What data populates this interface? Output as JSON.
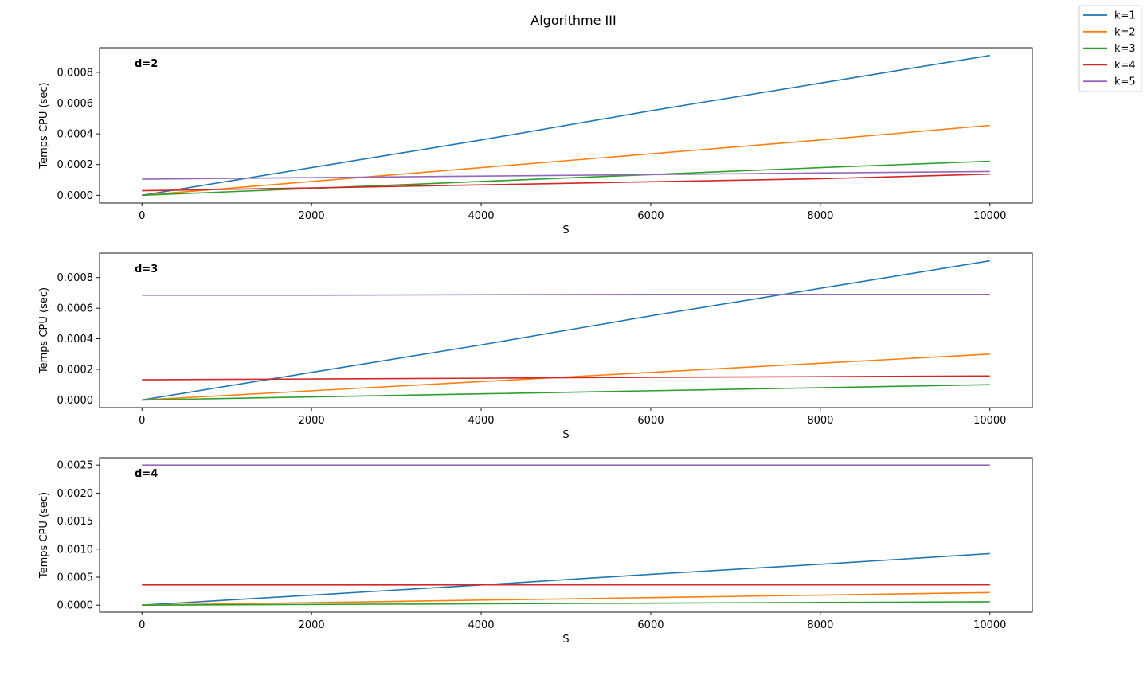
{
  "figure_title": "Algorithme III",
  "legend": {
    "placement": "top-right",
    "entries": [
      {
        "label": "k=1",
        "color": "#1f77b4"
      },
      {
        "label": "k=2",
        "color": "#ff7f0e"
      },
      {
        "label": "k=3",
        "color": "#2ca02c"
      },
      {
        "label": "k=4",
        "color": "#d62728"
      },
      {
        "label": "k=5",
        "color": "#9467bd"
      }
    ]
  },
  "chart_data": [
    {
      "type": "line",
      "panel_label": "d=2",
      "xlabel": "S",
      "ylabel": "Temps CPU (sec)",
      "xlim": [
        -500,
        10500
      ],
      "ylim": [
        -5e-05,
        0.00096
      ],
      "xticks": [
        0,
        2000,
        4000,
        6000,
        8000,
        10000
      ],
      "xtick_labels": [
        "0",
        "2000",
        "4000",
        "6000",
        "8000",
        "10000"
      ],
      "yticks": [
        0,
        0.0002,
        0.0004,
        0.0006,
        0.0008
      ],
      "ytick_labels": [
        "0.0000",
        "0.0002",
        "0.0004",
        "0.0006",
        "0.0008"
      ],
      "grid": false,
      "series": [
        {
          "name": "k=1",
          "x": [
            0,
            2000,
            4000,
            6000,
            8000,
            10000
          ],
          "y": [
            0.0,
            0.00018,
            0.00036,
            0.00055,
            0.00073,
            0.00091
          ]
        },
        {
          "name": "k=2",
          "x": [
            0,
            2000,
            4000,
            6000,
            8000,
            10000
          ],
          "y": [
            0.0,
            9e-05,
            0.00018,
            0.00027,
            0.00036,
            0.000455
          ]
        },
        {
          "name": "k=3",
          "x": [
            0,
            2000,
            4000,
            6000,
            8000,
            10000
          ],
          "y": [
            0.0,
            4.5e-05,
            9e-05,
            0.000135,
            0.00018,
            0.000222
          ]
        },
        {
          "name": "k=4",
          "x": [
            0,
            2000,
            4000,
            6000,
            8000,
            10000
          ],
          "y": [
            3e-05,
            4.8e-05,
            6.8e-05,
            8.8e-05,
            0.000108,
            0.000138
          ]
        },
        {
          "name": "k=5",
          "x": [
            0,
            2000,
            4000,
            6000,
            8000,
            10000
          ],
          "y": [
            0.000105,
            0.000115,
            0.000125,
            0.000135,
            0.000145,
            0.000155
          ]
        }
      ]
    },
    {
      "type": "line",
      "panel_label": "d=3",
      "xlabel": "S",
      "ylabel": "Temps CPU (sec)",
      "xlim": [
        -500,
        10500
      ],
      "ylim": [
        -5e-05,
        0.00096
      ],
      "xticks": [
        0,
        2000,
        4000,
        6000,
        8000,
        10000
      ],
      "xtick_labels": [
        "0",
        "2000",
        "4000",
        "6000",
        "8000",
        "10000"
      ],
      "yticks": [
        0,
        0.0002,
        0.0004,
        0.0006,
        0.0008
      ],
      "ytick_labels": [
        "0.0000",
        "0.0002",
        "0.0004",
        "0.0006",
        "0.0008"
      ],
      "grid": false,
      "series": [
        {
          "name": "k=1",
          "x": [
            0,
            2000,
            4000,
            6000,
            8000,
            10000
          ],
          "y": [
            0.0,
            0.00018,
            0.00036,
            0.00055,
            0.00073,
            0.00091
          ]
        },
        {
          "name": "k=2",
          "x": [
            0,
            2000,
            4000,
            6000,
            8000,
            10000
          ],
          "y": [
            0.0,
            6e-05,
            0.00012,
            0.00018,
            0.00024,
            0.0003
          ]
        },
        {
          "name": "k=3",
          "x": [
            0,
            2000,
            4000,
            6000,
            8000,
            10000
          ],
          "y": [
            0.0,
            2e-05,
            4e-05,
            6e-05,
            8e-05,
            0.0001
          ]
        },
        {
          "name": "k=4",
          "x": [
            0,
            2000,
            4000,
            6000,
            8000,
            10000
          ],
          "y": [
            0.000132,
            0.000137,
            0.000142,
            0.000148,
            0.000152,
            0.000157
          ]
        },
        {
          "name": "k=5",
          "x": [
            0,
            2000,
            4000,
            6000,
            8000,
            10000
          ],
          "y": [
            0.000685,
            0.000685,
            0.000688,
            0.00069,
            0.00069,
            0.00069
          ]
        }
      ]
    },
    {
      "type": "line",
      "panel_label": "d=4",
      "xlabel": "S",
      "ylabel": "Temps CPU (sec)",
      "xlim": [
        -500,
        10500
      ],
      "ylim": [
        -0.000125,
        0.00263
      ],
      "xticks": [
        0,
        2000,
        4000,
        6000,
        8000,
        10000
      ],
      "xtick_labels": [
        "0",
        "2000",
        "4000",
        "6000",
        "8000",
        "10000"
      ],
      "yticks": [
        0,
        0.0005,
        0.001,
        0.0015,
        0.002,
        0.0025
      ],
      "ytick_labels": [
        "0.0000",
        "0.0005",
        "0.0010",
        "0.0015",
        "0.0020",
        "0.0025"
      ],
      "grid": false,
      "series": [
        {
          "name": "k=1",
          "x": [
            0,
            2000,
            4000,
            6000,
            8000,
            10000
          ],
          "y": [
            0.0,
            0.00018,
            0.00036,
            0.00055,
            0.00073,
            0.00092
          ]
        },
        {
          "name": "k=2",
          "x": [
            0,
            2000,
            4000,
            6000,
            8000,
            10000
          ],
          "y": [
            0.0,
            4.5e-05,
            9e-05,
            0.000135,
            0.00018,
            0.000225
          ]
        },
        {
          "name": "k=3",
          "x": [
            0,
            2000,
            4000,
            6000,
            8000,
            10000
          ],
          "y": [
            0.0,
            1.2e-05,
            2.4e-05,
            3.6e-05,
            4.8e-05,
            6e-05
          ]
        },
        {
          "name": "k=4",
          "x": [
            0,
            2000,
            4000,
            6000,
            8000,
            10000
          ],
          "y": [
            0.00036,
            0.00036,
            0.000362,
            0.000362,
            0.000362,
            0.000362
          ]
        },
        {
          "name": "k=5",
          "x": [
            0,
            2000,
            4000,
            6000,
            8000,
            10000
          ],
          "y": [
            0.0025,
            0.0025,
            0.0025,
            0.0025,
            0.0025,
            0.0025
          ]
        }
      ]
    }
  ]
}
